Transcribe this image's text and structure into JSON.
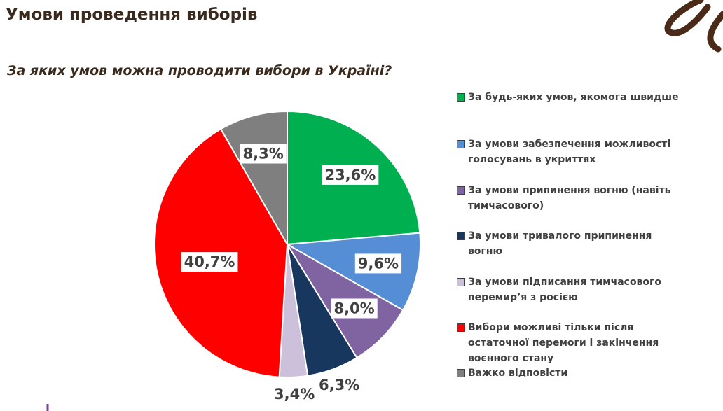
{
  "chart_data": {
    "type": "pie",
    "title": "Умови проведення виборів",
    "subtitle": "За яких умов можна проводити вибори в Україні?",
    "categories": [
      "За будь-яких умов, якомога швидше",
      "За умови забезпечення можливості голосувань в укриттях",
      "За умови припинення вогню (навіть тимчасового)",
      "За умови тривалого припинення вогню",
      "За умови підписання тимчасового перемир’я з росією",
      "Вибори можливі тільки після остаточної перемоги і закінчення воєнного стану",
      "Важко відповісти"
    ],
    "values": [
      23.6,
      9.6,
      8.0,
      6.3,
      3.4,
      40.7,
      8.3
    ],
    "value_labels": [
      "23,6%",
      "9,6%",
      "8,0%",
      "6,3%",
      "3,4%",
      "40,7%",
      "8,3%"
    ],
    "colors": [
      "#00b050",
      "#558ed5",
      "#8064a2",
      "#17375e",
      "#ccc0da",
      "#ff0000",
      "#7f7f7f"
    ]
  }
}
